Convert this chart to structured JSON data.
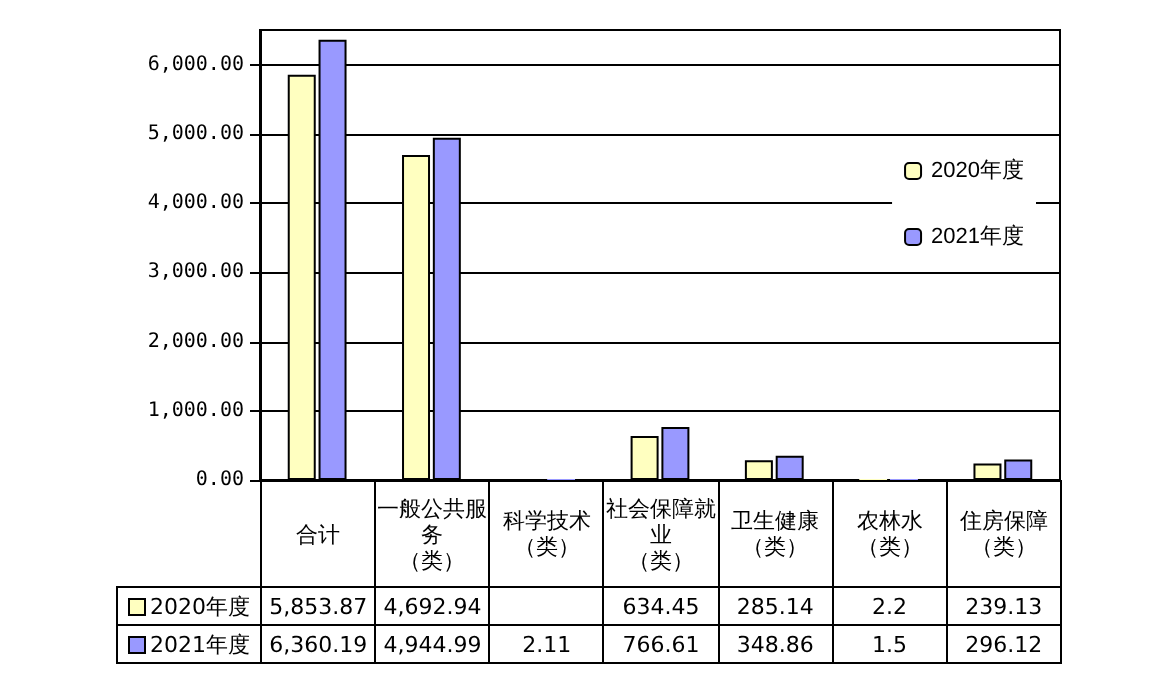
{
  "chart_data": {
    "type": "bar",
    "categories": [
      "合计",
      "一般公共服务（类）",
      "科学技术（类）",
      "社会保障就业（类）",
      "卫生健康（类）",
      "农林水（类）",
      "住房保障（类）"
    ],
    "series": [
      {
        "name": "2020年度",
        "color": "#ffffc0",
        "values": [
          5853.87,
          4692.94,
          null,
          634.45,
          285.14,
          2.2,
          239.13
        ],
        "value_labels": [
          "5,853.87",
          "4,692.94",
          null,
          "634.45",
          "285.14",
          "2.2",
          "239.13"
        ]
      },
      {
        "name": "2021年度",
        "color": "#9999ff",
        "values": [
          6360.19,
          4944.99,
          2.11,
          766.61,
          348.86,
          1.5,
          296.12
        ],
        "value_labels": [
          "6,360.19",
          "4,944.99",
          "2.11",
          "766.61",
          "348.86",
          "1.5",
          "296.12"
        ]
      }
    ],
    "ylim": [
      0,
      6500
    ],
    "yticks": [
      {
        "value": 0,
        "label": "0.00"
      },
      {
        "value": 1000,
        "label": "1,000.00"
      },
      {
        "value": 2000,
        "label": "2,000.00"
      },
      {
        "value": 3000,
        "label": "3,000.00"
      },
      {
        "value": 4000,
        "label": "4,000.00"
      },
      {
        "value": 5000,
        "label": "5,000.00"
      },
      {
        "value": 6000,
        "label": "6,000.00"
      }
    ],
    "grid": "y",
    "legend": "right"
  }
}
